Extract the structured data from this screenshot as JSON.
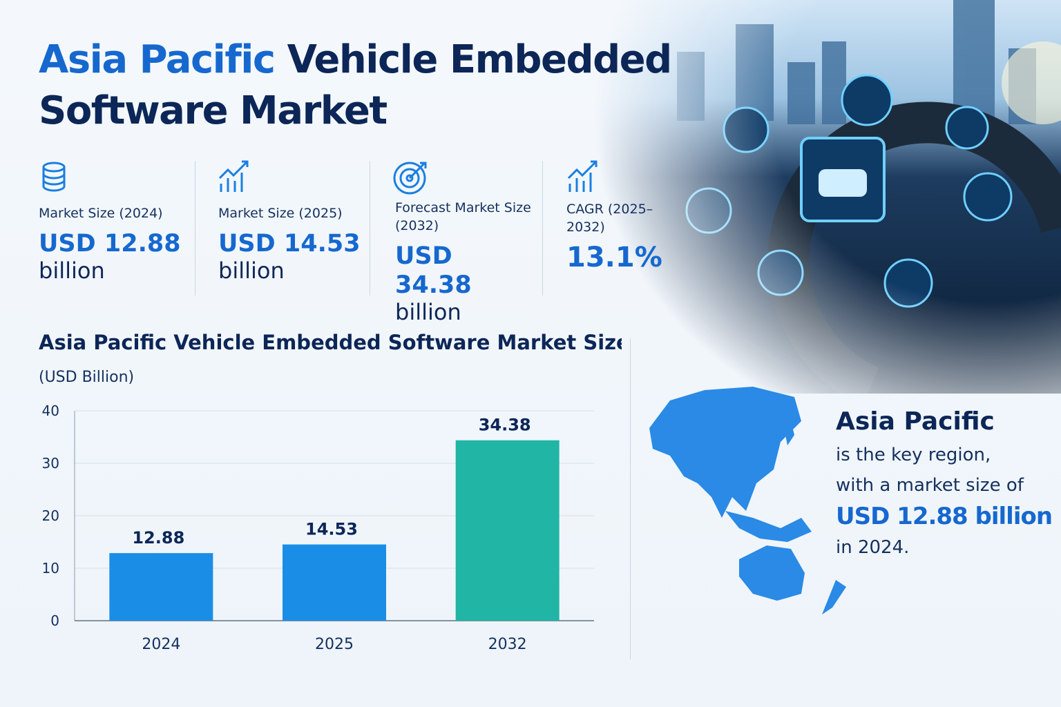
{
  "header": {
    "highlight": "Asia Pacific",
    "title_line1": "Vehicle Embedded",
    "title_line2": "Software Market"
  },
  "stats": [
    {
      "label": "Market Size (2024)",
      "value": "USD 12.88",
      "unit": "billion"
    },
    {
      "label": "Market Size (2025)",
      "value": "USD 14.53",
      "unit": "billion"
    },
    {
      "label": "Forecast Market Size (2032)",
      "value": "USD 34.38",
      "unit": "billion"
    },
    {
      "label": "CAGR (2025–2032)",
      "value": "13.1%"
    }
  ],
  "chart_data": {
    "type": "bar",
    "title": "Asia Pacific Vehicle Embedded Software Market Size",
    "subtitle": "(USD Billion)",
    "categories": [
      "2024",
      "2025",
      "2032"
    ],
    "values": [
      12.88,
      14.53,
      34.38
    ],
    "colors": [
      "#1a8ee6",
      "#1a8ee6",
      "#20b5a5"
    ],
    "ylim": [
      0,
      40
    ],
    "yticks": [
      0,
      10,
      20,
      30,
      40
    ],
    "grid": true
  },
  "callout": {
    "title": "Asia Pacific",
    "line1": "is the key region,",
    "line2": "with a market size of",
    "highlight": "USD 12.88 billion",
    "line3": "in 2024."
  }
}
